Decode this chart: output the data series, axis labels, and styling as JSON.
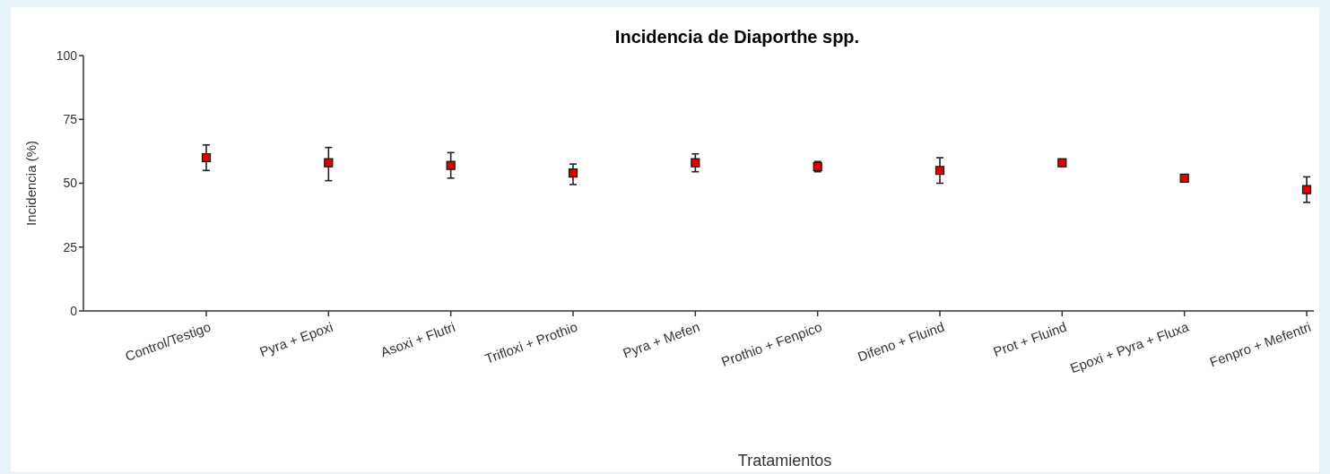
{
  "chart_data": {
    "type": "scatter",
    "title": "Incidencia de Diaporthe spp.",
    "xlabel": "Tratamientos",
    "ylabel": "Incidencia (%)",
    "categories": [
      "Control/Testigo",
      "Pyra + Epoxi",
      "Asoxi + Flutri",
      "Trifloxi + Prothio",
      "Pyra + Mefen",
      "Prothio + Fenpico",
      "Difeno + Fluind",
      "Prot + Fluind",
      "Epoxi + Pyra + Fluxa",
      "Fenpro + Mefentri"
    ],
    "values": [
      60,
      58,
      57,
      54,
      58,
      56.5,
      55,
      58,
      52,
      47.5
    ],
    "errors": [
      5,
      [
        51,
        64
      ],
      5,
      [
        49.5,
        57.5
      ],
      3.5,
      2,
      5,
      null,
      null,
      5
    ],
    "color": "#e00000",
    "marker": "square",
    "ylim": [
      0,
      100
    ],
    "yticks": [
      0,
      25,
      50,
      75,
      100
    ],
    "grid": false
  }
}
